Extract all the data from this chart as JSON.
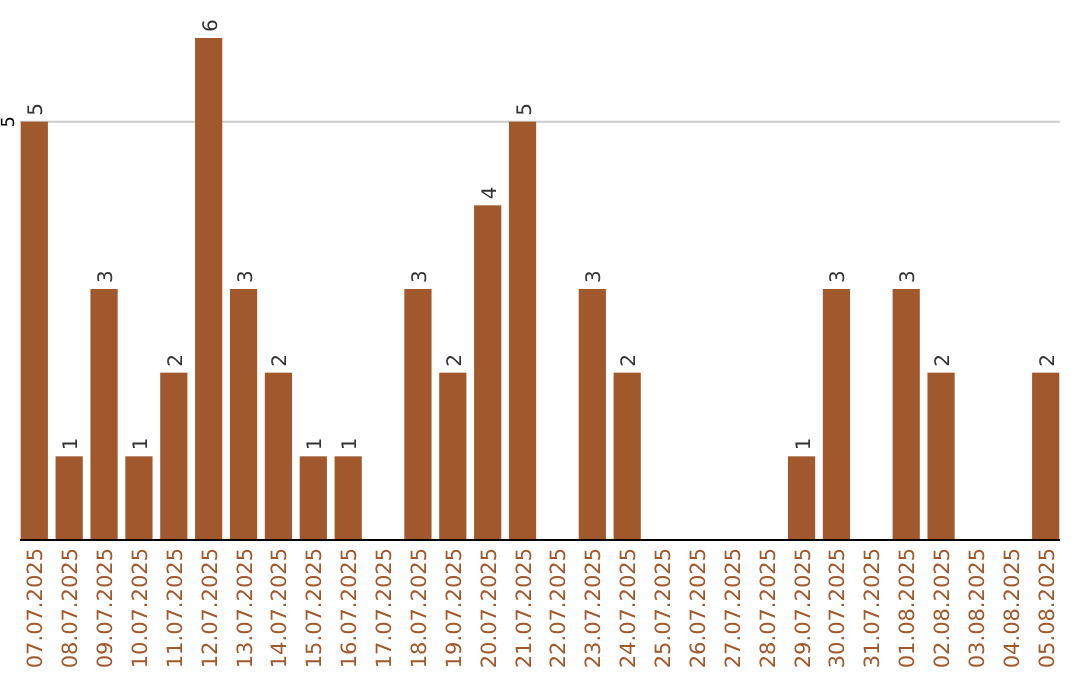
{
  "chart_data": {
    "type": "bar",
    "categories": [
      "07.07.2025",
      "08.07.2025",
      "09.07.2025",
      "10.07.2025",
      "11.07.2025",
      "12.07.2025",
      "13.07.2025",
      "14.07.2025",
      "15.07.2025",
      "16.07.2025",
      "17.07.2025",
      "18.07.2025",
      "19.07.2025",
      "20.07.2025",
      "21.07.2025",
      "22.07.2025",
      "23.07.2025",
      "24.07.2025",
      "25.07.2025",
      "26.07.2025",
      "27.07.2025",
      "28.07.2025",
      "29.07.2025",
      "30.07.2025",
      "31.07.2025",
      "01.08.2025",
      "02.08.2025",
      "03.08.2025",
      "04.08.2025",
      "05.08.2025"
    ],
    "values": [
      5,
      1,
      3,
      1,
      2,
      6,
      3,
      2,
      1,
      1,
      null,
      3,
      2,
      4,
      5,
      null,
      3,
      2,
      null,
      null,
      null,
      null,
      1,
      3,
      null,
      3,
      2,
      null,
      null,
      2
    ],
    "color": "#a0582c",
    "ref_lines": [
      {
        "axis": "y",
        "value": 5,
        "label": "5",
        "color": "#cccccc"
      }
    ],
    "data_labels": true
  }
}
